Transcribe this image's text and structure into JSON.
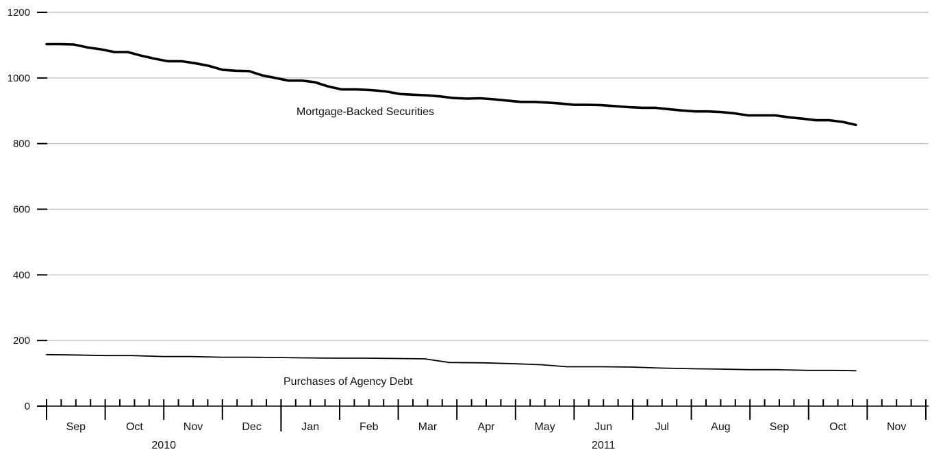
{
  "chart_data": {
    "type": "line",
    "title": "",
    "xlabel": "",
    "ylabel": "",
    "ylim": [
      0,
      1200
    ],
    "y_ticks": [
      0,
      200,
      400,
      600,
      800,
      1000,
      1200
    ],
    "grid": true,
    "legend": "none (series labelled inline)",
    "x_axis": {
      "months": [
        {
          "label": "Sep",
          "year": 2010
        },
        {
          "label": "Oct",
          "year": 2010
        },
        {
          "label": "Nov",
          "year": 2010
        },
        {
          "label": "Dec",
          "year": 2010
        },
        {
          "label": "Jan",
          "year": 2011
        },
        {
          "label": "Feb",
          "year": 2011
        },
        {
          "label": "Mar",
          "year": 2011
        },
        {
          "label": "Apr",
          "year": 2011
        },
        {
          "label": "May",
          "year": 2011
        },
        {
          "label": "Jun",
          "year": 2011
        },
        {
          "label": "Jul",
          "year": 2011
        },
        {
          "label": "Aug",
          "year": 2011
        },
        {
          "label": "Sep",
          "year": 2011
        },
        {
          "label": "Oct",
          "year": 2011
        },
        {
          "label": "Nov",
          "year": 2011
        }
      ],
      "years": [
        "2010",
        "2011"
      ],
      "weekly_ticks_per_month": 4
    },
    "series": [
      {
        "name": "Mortgage-Backed Securities",
        "color": "#000000",
        "weight": "heavy",
        "x": [
          "2010-09-01",
          "2010-09-08",
          "2010-09-15",
          "2010-09-22",
          "2010-09-29",
          "2010-10-06",
          "2010-10-13",
          "2010-10-20",
          "2010-10-27",
          "2010-11-03",
          "2010-11-10",
          "2010-11-17",
          "2010-11-24",
          "2010-12-01",
          "2010-12-08",
          "2010-12-15",
          "2010-12-22",
          "2010-12-29",
          "2011-01-05",
          "2011-01-12",
          "2011-01-19",
          "2011-01-26",
          "2011-02-02",
          "2011-02-09",
          "2011-02-16",
          "2011-02-23",
          "2011-03-02",
          "2011-03-09",
          "2011-03-16",
          "2011-03-23",
          "2011-03-30",
          "2011-04-06",
          "2011-04-13",
          "2011-04-20",
          "2011-04-27",
          "2011-05-04",
          "2011-05-11",
          "2011-05-18",
          "2011-05-25",
          "2011-06-01",
          "2011-06-08",
          "2011-06-15",
          "2011-06-22",
          "2011-06-29",
          "2011-07-06",
          "2011-07-13",
          "2011-07-20",
          "2011-07-27",
          "2011-08-03",
          "2011-08-10",
          "2011-08-17",
          "2011-08-24",
          "2011-08-31",
          "2011-09-07",
          "2011-09-14",
          "2011-09-21",
          "2011-09-28",
          "2011-10-05",
          "2011-10-12",
          "2011-10-19",
          "2011-10-26"
        ],
        "values": [
          1103,
          1103,
          1102,
          1093,
          1087,
          1079,
          1079,
          1068,
          1059,
          1051,
          1051,
          1045,
          1037,
          1025,
          1022,
          1021,
          1008,
          1000,
          992,
          992,
          987,
          974,
          965,
          965,
          963,
          959,
          951,
          949,
          947,
          944,
          939,
          937,
          938,
          935,
          931,
          927,
          927,
          925,
          922,
          918,
          918,
          917,
          914,
          911,
          909,
          909,
          905,
          901,
          898,
          898,
          896,
          892,
          886,
          886,
          886,
          880,
          876,
          871,
          871,
          866,
          857
        ]
      },
      {
        "name": "Purchases of Agency Debt",
        "color": "#000000",
        "weight": "light",
        "x": [
          "2010-09-01",
          "2010-09-15",
          "2010-10-01",
          "2010-10-15",
          "2010-11-01",
          "2010-11-15",
          "2010-12-01",
          "2010-12-15",
          "2011-01-01",
          "2011-01-15",
          "2011-02-01",
          "2011-02-15",
          "2011-03-01",
          "2011-03-15",
          "2011-03-28",
          "2011-04-15",
          "2011-05-01",
          "2011-05-15",
          "2011-05-28",
          "2011-06-15",
          "2011-07-01",
          "2011-07-15",
          "2011-08-01",
          "2011-08-15",
          "2011-09-01",
          "2011-09-15",
          "2011-10-01",
          "2011-10-15",
          "2011-10-26"
        ],
        "values": [
          157,
          156,
          154,
          154,
          151,
          151,
          149,
          149,
          148,
          147,
          146,
          146,
          145,
          144,
          133,
          132,
          129,
          126,
          120,
          120,
          119,
          116,
          114,
          113,
          111,
          111,
          109,
          109,
          108
        ]
      }
    ],
    "annotations": [
      {
        "text": "Mortgage-Backed Securities",
        "near_series": 0
      },
      {
        "text": "Purchases of Agency Debt",
        "near_series": 1
      }
    ]
  }
}
